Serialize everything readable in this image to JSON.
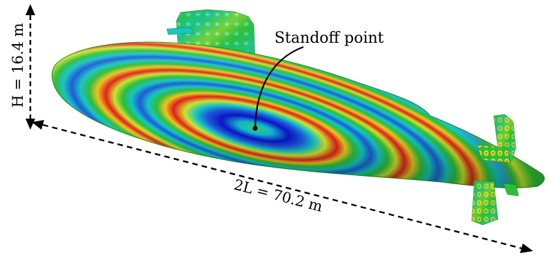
{
  "annotations": {
    "standoff_label": "Standoff point",
    "height_label": "H = 16.4 m",
    "length_label": "2L = 70.2 m"
  },
  "colors": {
    "background": "#ffffff",
    "hull_base": "#2eb82e",
    "colormap": [
      "#0a14c8",
      "#1e5adc",
      "#14c8c8",
      "#2ebf3a",
      "#d2e62a",
      "#f2c81e",
      "#e61e1e"
    ],
    "marker": "#000000"
  }
}
